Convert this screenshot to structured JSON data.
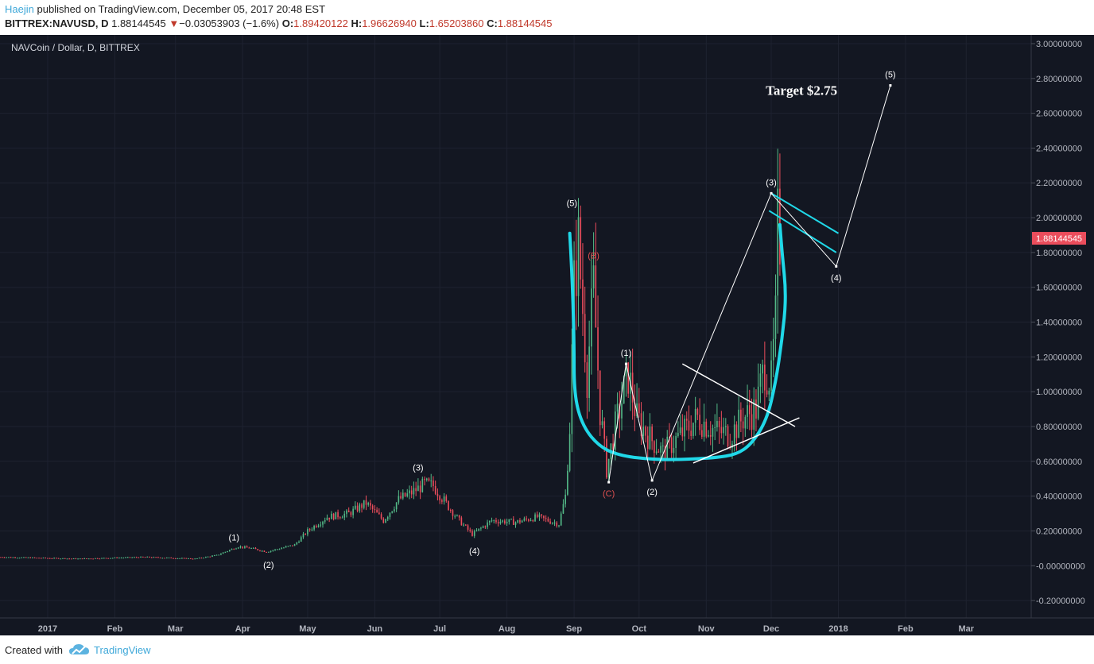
{
  "header": {
    "author": "Haejin",
    "published_text": "published on TradingView.com, December 05, 2017 20:48 EST",
    "symbol": "BITTREX:NAVUSD, D",
    "last": "1.88144545",
    "change": "−0.03053903 (−1.6%)",
    "open_label": "O:",
    "open": "1.89420122",
    "high_label": "H:",
    "high": "1.96626940",
    "low_label": "L:",
    "low": "1.65203860",
    "close_label": "C:",
    "close": "1.88144545"
  },
  "footer": {
    "created_with": "Created with",
    "brand": "TradingView"
  },
  "chart_data": {
    "type": "candlestick",
    "title": "NAVCoin / Dollar, D, BITTREX",
    "ylim": [
      -0.3,
      3.05
    ],
    "y_ticks": [
      {
        "v": 3.0,
        "label": "3.00000000"
      },
      {
        "v": 2.8,
        "label": "2.80000000"
      },
      {
        "v": 2.6,
        "label": "2.60000000"
      },
      {
        "v": 2.4,
        "label": "2.40000000"
      },
      {
        "v": 2.2,
        "label": "2.20000000"
      },
      {
        "v": 2.0,
        "label": "2.00000000"
      },
      {
        "v": 1.8,
        "label": "1.80000000"
      },
      {
        "v": 1.6,
        "label": "1.60000000"
      },
      {
        "v": 1.4,
        "label": "1.40000000"
      },
      {
        "v": 1.2,
        "label": "1.20000000"
      },
      {
        "v": 1.0,
        "label": "1.00000000"
      },
      {
        "v": 0.8,
        "label": "0.80000000"
      },
      {
        "v": 0.6,
        "label": "0.60000000"
      },
      {
        "v": 0.4,
        "label": "0.40000000"
      },
      {
        "v": 0.2,
        "label": "0.20000000"
      },
      {
        "v": 0.0,
        "label": "-0.00000000"
      },
      {
        "v": -0.2,
        "label": "-0.20000000"
      }
    ],
    "x_ticks": [
      {
        "date": "2017-01-01",
        "label": "2017"
      },
      {
        "date": "2017-02-01",
        "label": "Feb"
      },
      {
        "date": "2017-03-01",
        "label": "Mar"
      },
      {
        "date": "2017-04-01",
        "label": "Apr"
      },
      {
        "date": "2017-05-01",
        "label": "May"
      },
      {
        "date": "2017-06-01",
        "label": "Jun"
      },
      {
        "date": "2017-07-01",
        "label": "Jul"
      },
      {
        "date": "2017-08-01",
        "label": "Aug"
      },
      {
        "date": "2017-09-01",
        "label": "Sep"
      },
      {
        "date": "2017-10-01",
        "label": "Oct"
      },
      {
        "date": "2017-11-01",
        "label": "Nov"
      },
      {
        "date": "2017-12-01",
        "label": "Dec"
      },
      {
        "date": "2018-01-01",
        "label": "2018"
      },
      {
        "date": "2018-02-01",
        "label": "Feb"
      },
      {
        "date": "2018-03-01",
        "label": "Mar"
      }
    ],
    "x_range": [
      "2016-12-10",
      "2018-03-31"
    ],
    "last_price_label": "1.88144545",
    "price_path": [
      [
        "2016-12-10",
        0.05
      ],
      [
        "2017-01-15",
        0.04
      ],
      [
        "2017-02-15",
        0.05
      ],
      [
        "2017-03-10",
        0.04
      ],
      [
        "2017-03-20",
        0.06
      ],
      [
        "2017-03-30",
        0.11
      ],
      [
        "2017-04-05",
        0.1
      ],
      [
        "2017-04-12",
        0.08
      ],
      [
        "2017-04-25",
        0.12
      ],
      [
        "2017-05-01",
        0.2
      ],
      [
        "2017-05-10",
        0.28
      ],
      [
        "2017-05-20",
        0.3
      ],
      [
        "2017-05-28",
        0.36
      ],
      [
        "2017-06-05",
        0.26
      ],
      [
        "2017-06-12",
        0.38
      ],
      [
        "2017-06-18",
        0.42
      ],
      [
        "2017-06-24",
        0.47
      ],
      [
        "2017-06-28",
        0.46
      ],
      [
        "2017-07-05",
        0.34
      ],
      [
        "2017-07-10",
        0.26
      ],
      [
        "2017-07-16",
        0.18
      ],
      [
        "2017-07-25",
        0.26
      ],
      [
        "2017-08-05",
        0.25
      ],
      [
        "2017-08-15",
        0.28
      ],
      [
        "2017-08-25",
        0.24
      ],
      [
        "2017-08-28",
        0.4
      ],
      [
        "2017-08-30",
        0.8
      ],
      [
        "2017-09-01",
        1.6
      ],
      [
        "2017-09-03",
        1.85
      ],
      [
        "2017-09-07",
        1.1
      ],
      [
        "2017-09-10",
        1.6
      ],
      [
        "2017-09-13",
        0.9
      ],
      [
        "2017-09-16",
        0.55
      ],
      [
        "2017-09-20",
        0.8
      ],
      [
        "2017-09-26",
        1.1
      ],
      [
        "2017-09-30",
        0.85
      ],
      [
        "2017-10-05",
        0.75
      ],
      [
        "2017-10-12",
        0.65
      ],
      [
        "2017-10-20",
        0.75
      ],
      [
        "2017-10-28",
        0.85
      ],
      [
        "2017-11-05",
        0.78
      ],
      [
        "2017-11-12",
        0.75
      ],
      [
        "2017-11-18",
        0.85
      ],
      [
        "2017-11-24",
        0.9
      ],
      [
        "2017-11-28",
        1.15
      ],
      [
        "2017-12-01",
        1.05
      ],
      [
        "2017-12-03",
        1.4
      ],
      [
        "2017-12-04",
        1.95
      ],
      [
        "2017-12-05",
        1.88
      ]
    ],
    "wave_paths": [
      [
        [
          "2017-09-17",
          0.48
        ],
        [
          "2017-09-25",
          1.16
        ],
        [
          "2017-10-07",
          0.49
        ],
        [
          "2017-12-01",
          2.14
        ],
        [
          "2017-12-31",
          1.72
        ],
        [
          "2018-01-25",
          2.76
        ]
      ]
    ],
    "wave_labels": [
      {
        "date": "2017-03-28",
        "v": 0.1,
        "text": "(1)",
        "pos": "above",
        "color": "#ffffff"
      },
      {
        "date": "2017-04-13",
        "v": 0.07,
        "text": "(2)",
        "pos": "below",
        "color": "#ffffff"
      },
      {
        "date": "2017-06-21",
        "v": 0.5,
        "text": "(3)",
        "pos": "above",
        "color": "#ffffff"
      },
      {
        "date": "2017-07-17",
        "v": 0.15,
        "text": "(4)",
        "pos": "below",
        "color": "#ffffff"
      },
      {
        "date": "2017-08-31",
        "v": 2.02,
        "text": "(5)",
        "pos": "above",
        "color": "#ffffff"
      },
      {
        "date": "2017-09-10",
        "v": 1.72,
        "text": "(B)",
        "pos": "above",
        "color": "#e05050"
      },
      {
        "date": "2017-09-17",
        "v": 0.48,
        "text": "(C)",
        "pos": "below",
        "color": "#e05050"
      },
      {
        "date": "2017-09-25",
        "v": 1.16,
        "text": "(1)",
        "pos": "above",
        "color": "#ffffff"
      },
      {
        "date": "2017-10-07",
        "v": 0.49,
        "text": "(2)",
        "pos": "below",
        "color": "#ffffff"
      },
      {
        "date": "2017-12-01",
        "v": 2.14,
        "text": "(3)",
        "pos": "above",
        "color": "#ffffff"
      },
      {
        "date": "2017-12-31",
        "v": 1.72,
        "text": "(4)",
        "pos": "below",
        "color": "#ffffff"
      },
      {
        "date": "2018-01-25",
        "v": 2.76,
        "text": "(5)",
        "pos": "above",
        "color": "#ffffff"
      }
    ],
    "annotation": {
      "text": "Target $2.75",
      "date": "2017-12-15",
      "v": 2.76
    },
    "trend_lines": [
      {
        "from": [
          "2017-10-26",
          0.59
        ],
        "to": [
          "2017-12-14",
          0.85
        ],
        "color": "#ffffff"
      },
      {
        "from": [
          "2017-10-21",
          1.16
        ],
        "to": [
          "2017-12-12",
          0.8
        ],
        "color": "#ffffff"
      },
      {
        "from": [
          "2017-11-30",
          2.04
        ],
        "to": [
          "2017-12-31",
          1.8
        ],
        "color": "#20d8e8"
      },
      {
        "from": [
          "2017-12-01",
          2.14
        ],
        "to": [
          "2018-01-01",
          1.91
        ],
        "color": "#20d8e8"
      }
    ],
    "cup_curve": [
      [
        "2017-08-30",
        1.91
      ],
      [
        "2017-08-31",
        1.7
      ],
      [
        "2017-09-01",
        1.3
      ],
      [
        "2017-09-01",
        0.98
      ],
      [
        "2017-09-05",
        0.8
      ],
      [
        "2017-09-13",
        0.68
      ],
      [
        "2017-09-23",
        0.63
      ],
      [
        "2017-10-08",
        0.61
      ],
      [
        "2017-10-20",
        0.61
      ],
      [
        "2017-11-05",
        0.62
      ],
      [
        "2017-11-15",
        0.64
      ],
      [
        "2017-11-22",
        0.7
      ],
      [
        "2017-11-29",
        0.84
      ],
      [
        "2017-12-03",
        1.05
      ],
      [
        "2017-12-06",
        1.3
      ],
      [
        "2017-12-08",
        1.55
      ],
      [
        "2017-12-06",
        1.8
      ],
      [
        "2017-12-05",
        1.96
      ]
    ],
    "colors": {
      "background": "#131722",
      "up": "#53b987",
      "down": "#eb4d5c",
      "cup": "#20d8e8",
      "lines": "#ffffff",
      "last_price_bg": "#eb4d5c"
    }
  }
}
